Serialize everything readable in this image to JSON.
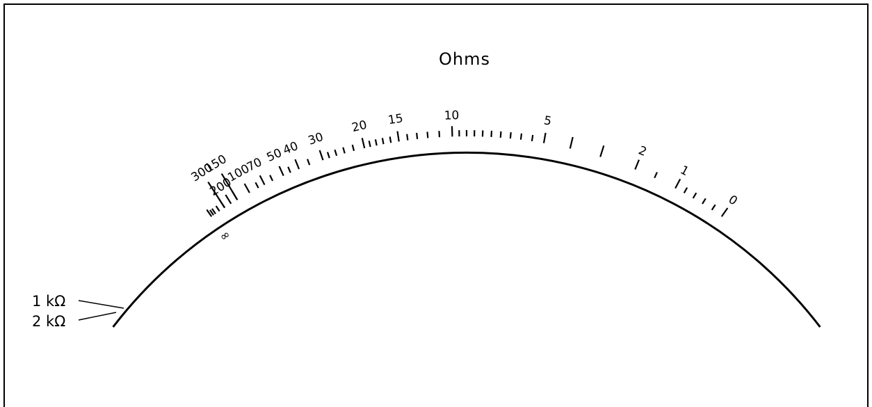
{
  "title": "Ohms",
  "colors": {
    "ink": "#000000",
    "background": "#ffffff"
  },
  "scale": {
    "labels": [
      {
        "text": "0",
        "id": "label-0"
      },
      {
        "text": "1",
        "id": "label-1"
      },
      {
        "text": "2",
        "id": "label-2"
      },
      {
        "text": "5",
        "id": "label-5"
      },
      {
        "text": "10",
        "id": "label-10"
      },
      {
        "text": "15",
        "id": "label-15"
      },
      {
        "text": "20",
        "id": "label-20"
      },
      {
        "text": "30",
        "id": "label-30"
      },
      {
        "text": "40",
        "id": "label-40"
      },
      {
        "text": "50",
        "id": "label-50"
      },
      {
        "text": "70",
        "id": "label-70"
      },
      {
        "text": "100",
        "id": "label-100"
      },
      {
        "text": "150",
        "id": "label-150"
      },
      {
        "text": "200",
        "id": "label-200"
      },
      {
        "text": "300",
        "id": "label-300"
      },
      {
        "text": "∞",
        "id": "label-infinity"
      }
    ],
    "kilo_labels": [
      {
        "text": "1 kΩ",
        "id": "label-1k"
      },
      {
        "text": "2 kΩ",
        "id": "label-2k"
      }
    ]
  }
}
